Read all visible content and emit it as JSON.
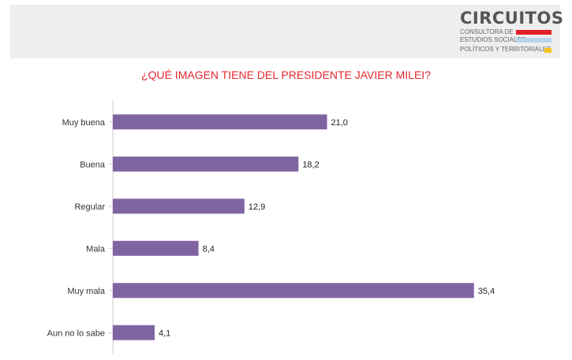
{
  "brand": {
    "name": "CIRCUITOS",
    "line1": "CONSULTORA DE",
    "line2": "ESTUDIOS SOCIALES,",
    "line3": "POLÍTICOS Y TERRITORIALES",
    "colors": [
      "#e31e24",
      "#b8d4ee",
      "#f5c518"
    ]
  },
  "chart_data": {
    "type": "bar",
    "orientation": "horizontal",
    "title": "¿QUÉ IMAGEN TIENE DEL PRESIDENTE JAVIER MILEI?",
    "categories": [
      "Muy buena",
      "Buena",
      "Regular",
      "Mala",
      "Muy mala",
      "Aun no lo sabe"
    ],
    "values": [
      21.0,
      18.2,
      12.9,
      8.4,
      35.4,
      4.1
    ],
    "value_labels": [
      "21,0",
      "18,2",
      "12,9",
      "8,4",
      "35,4",
      "4,1"
    ],
    "xlim": [
      0,
      37
    ],
    "bar_color": "#8064a2",
    "title_color": "#e3262d",
    "grid": false,
    "legend": "none"
  }
}
